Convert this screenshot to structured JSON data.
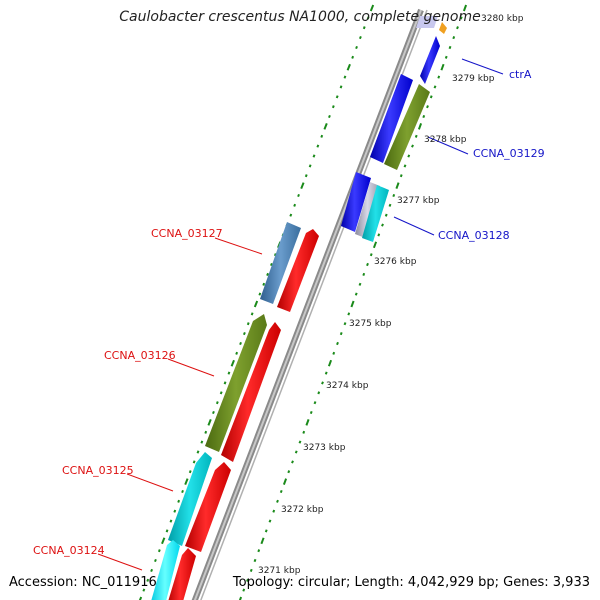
{
  "title": "Caulobacter crescentus NA1000, complete genome",
  "footer": {
    "accession": "Accession: NC_011916",
    "summary": "Topology: circular; Length: 4,042,929 bp; Genes: 3,933"
  },
  "ticks": [
    "3280 kbp",
    "3279 kbp",
    "3278 kbp",
    "3277 kbp",
    "3276 kbp",
    "3275 kbp",
    "3274 kbp",
    "3273 kbp",
    "3272 kbp",
    "3271 kbp"
  ],
  "colors": {
    "cds_forward": "#0000ee",
    "cds_reverse": "#ff0000",
    "olive": "#6b8e23",
    "steelblue": "#4682b4",
    "cyan": "#00cccc",
    "backbone": "#8a8a8a",
    "tick": "#1a8a1a",
    "label_forward": "#1515c8",
    "label_reverse": "#dd1111"
  },
  "labels": {
    "forward": [
      "ctrA",
      "CCNA_03129",
      "CCNA_03128"
    ],
    "reverse": [
      "CCNA_03127",
      "CCNA_03126",
      "CCNA_03125",
      "CCNA_03124"
    ]
  }
}
